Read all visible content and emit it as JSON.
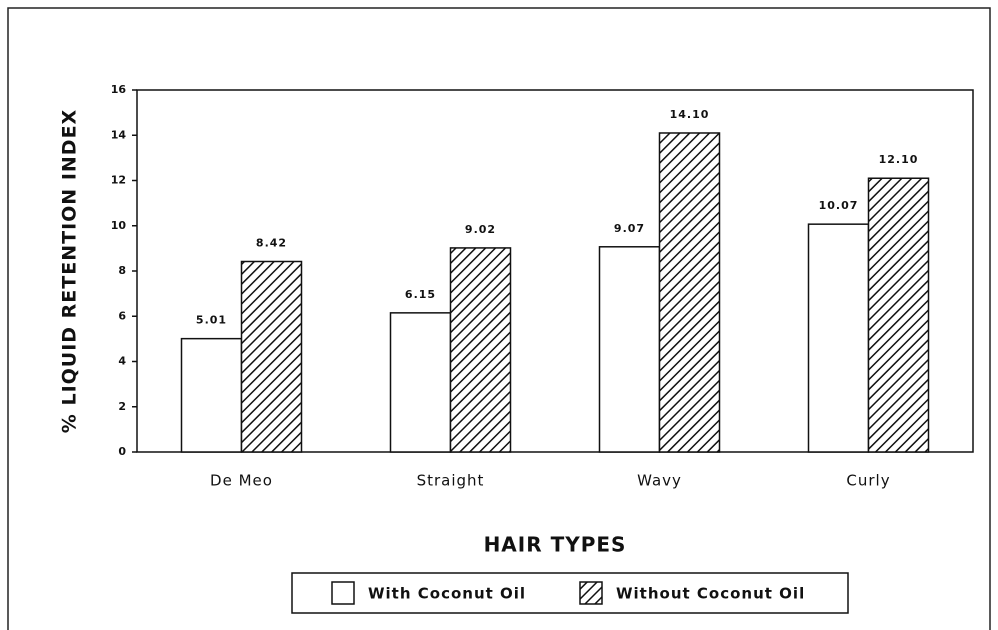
{
  "chart_data": {
    "type": "bar",
    "y_label": "% LIQUID RETENTION INDEX",
    "x_label": "HAIR TYPES",
    "categories": [
      "De Meo",
      "Straight",
      "Wavy",
      "Curly"
    ],
    "series": [
      {
        "name": "With Coconut Oil",
        "color": "#ffffff",
        "pattern": "solid",
        "values": [
          5.01,
          6.15,
          9.07,
          10.07
        ],
        "value_labels": [
          "5.01",
          "6.15",
          "9.07",
          "10.07"
        ]
      },
      {
        "name": "Without Coconut Oil",
        "color": "#000000",
        "pattern": "hatch",
        "values": [
          8.42,
          9.02,
          14.1,
          12.1
        ],
        "value_labels": [
          "8.42",
          "9.02",
          "14.10",
          "12.10"
        ]
      }
    ],
    "ylim": [
      0,
      16
    ],
    "yticks": [
      0,
      2,
      4,
      6,
      8,
      10,
      12,
      14,
      16
    ],
    "grid": false
  }
}
